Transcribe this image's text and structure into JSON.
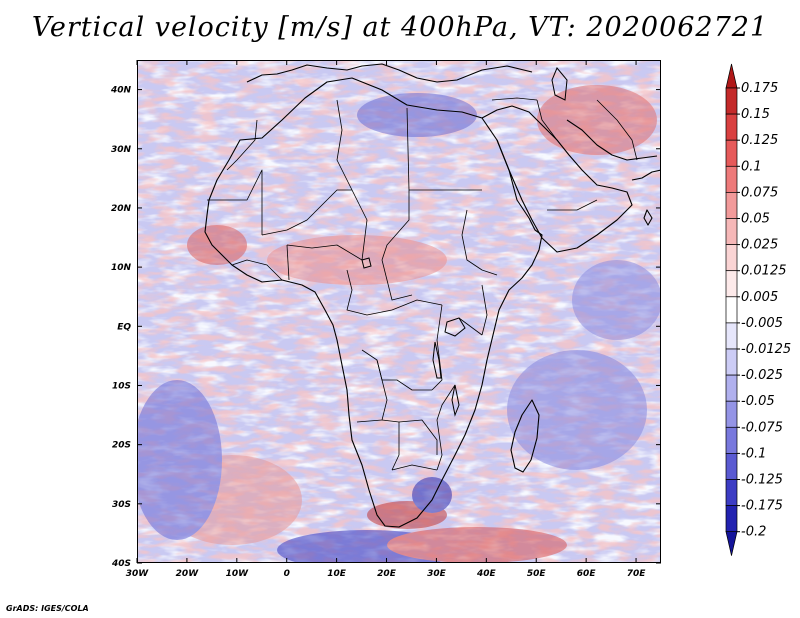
{
  "title": "Vertical velocity [m/s] at 400hPa, VT: 2020062721",
  "credit": "GrADS: IGES/COLA",
  "axes": {
    "lat_labels": [
      "40N",
      "30N",
      "20N",
      "10N",
      "EQ",
      "10S",
      "20S",
      "30S",
      "40S"
    ],
    "lat_values": [
      40,
      30,
      20,
      10,
      0,
      -10,
      -20,
      -30,
      -40
    ],
    "lon_labels": [
      "30W",
      "20W",
      "10W",
      "0",
      "10E",
      "20E",
      "30E",
      "40E",
      "50E",
      "60E",
      "70E"
    ],
    "lon_values": [
      -30,
      -20,
      -10,
      0,
      10,
      20,
      30,
      40,
      50,
      60,
      70
    ],
    "lat_range": [
      -40,
      45
    ],
    "lon_range": [
      -30,
      75
    ]
  },
  "colorbar": {
    "labels": [
      "0.175",
      "0.15",
      "0.125",
      "0.1",
      "0.075",
      "0.05",
      "0.025",
      "0.0125",
      "0.005",
      "-0.005",
      "-0.0125",
      "-0.025",
      "-0.05",
      "-0.075",
      "-0.1",
      "-0.125",
      "-0.175",
      "-0.2"
    ],
    "colors": [
      "#b01818",
      "#c42a2a",
      "#d94040",
      "#e65a5a",
      "#ee7a7a",
      "#f29a9a",
      "#f6b8b8",
      "#fad4d4",
      "#fdeaea",
      "#ffffff",
      "#e6e6fb",
      "#ccccf5",
      "#b0b0ee",
      "#9494e6",
      "#7878dd",
      "#5a5ad2",
      "#3c3cc4",
      "#2222b0",
      "#14149a"
    ]
  },
  "field": {
    "background": "#c9c9f2",
    "positive_color": "#e89a9a",
    "negative_color": "#7f7fd9",
    "strong_positive": "#c22a2a",
    "strong_negative": "#2c2cb8"
  }
}
